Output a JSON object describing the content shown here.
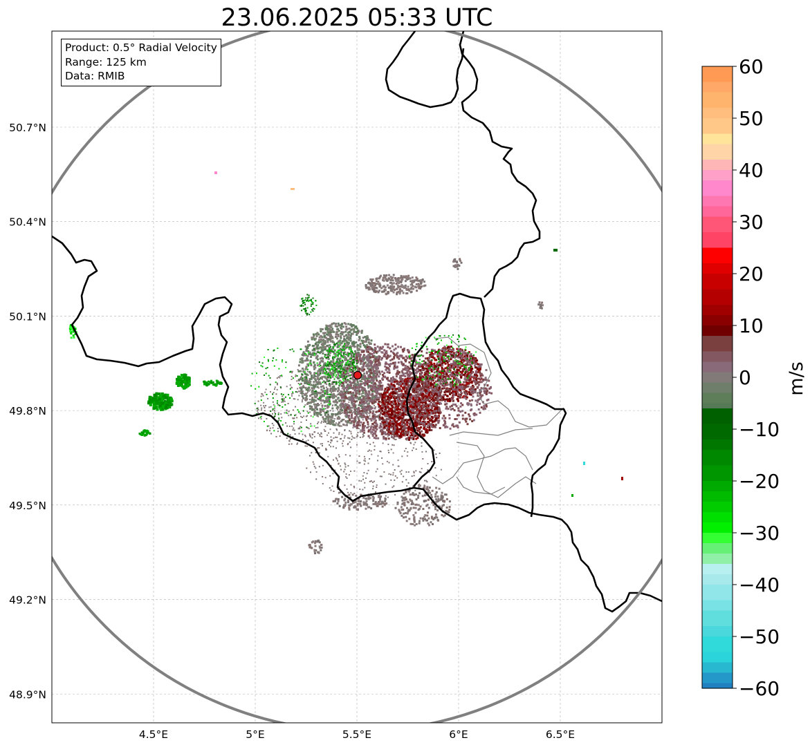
{
  "title": "23.06.2025 05:33 UTC",
  "info": {
    "product": "Product: 0.5° Radial Velocity",
    "range": "Range: 125 km",
    "data": "Data: RMIB"
  },
  "map": {
    "lon_range": [
      4.0,
      7.0
    ],
    "lat_range": [
      48.8,
      51.0
    ],
    "lon_ticks": [
      4.5,
      5.0,
      5.5,
      6.0,
      6.5
    ],
    "lon_tick_labels": [
      "4.5°E",
      "5°E",
      "5.5°E",
      "6°E",
      "6.5°E"
    ],
    "lat_ticks": [
      50.7,
      50.4,
      50.1,
      49.8,
      49.5,
      49.2,
      48.9
    ],
    "lat_tick_labels": [
      "50.7°N",
      "50.4°N",
      "50.1°N",
      "49.8°N",
      "49.5°N",
      "49.2°N",
      "48.9°N"
    ],
    "radar_site": {
      "lon": 5.505,
      "lat": 49.915
    },
    "range_ring_km": 125
  },
  "colorbar": {
    "label": "m/s",
    "vmin": -60,
    "vmax": 60,
    "ticks": [
      60,
      50,
      40,
      30,
      20,
      10,
      0,
      -10,
      -20,
      -30,
      -40,
      -50,
      -60
    ],
    "tick_labels": [
      "60",
      "50",
      "40",
      "30",
      "20",
      "10",
      "0",
      "−10",
      "−20",
      "−30",
      "−40",
      "−50",
      "−60"
    ]
  },
  "colors": {
    "ring": "#808080",
    "border": "#000000",
    "province": "#808080",
    "grid": "#b0b0b0",
    "site_marker": "#e41a1c"
  }
}
